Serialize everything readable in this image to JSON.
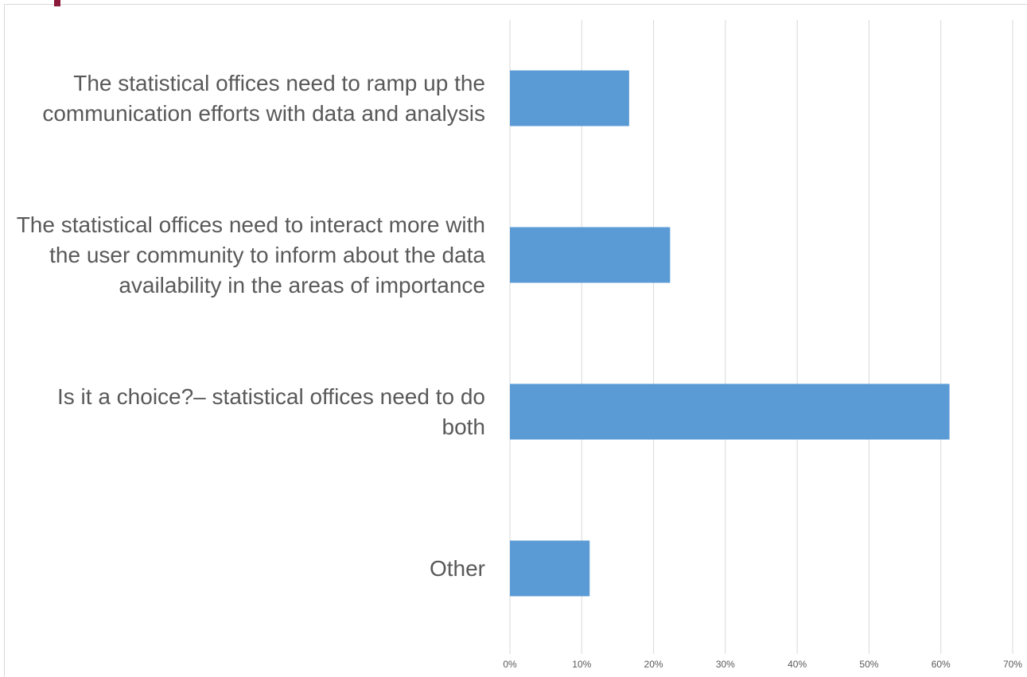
{
  "chart_data": {
    "type": "bar",
    "orientation": "horizontal",
    "categories": [
      "The statistical offices need to ramp up the communication efforts with data and analysis",
      "The statistical offices need to interact more with the user community to inform about the data availability in the areas of importance",
      "Is it a choice?– statistical offices need to do both",
      "Other"
    ],
    "values": [
      16.6,
      22.3,
      61.2,
      11.1
    ],
    "color": "#5b9bd5",
    "xlim": [
      0,
      70
    ],
    "xticks": [
      {
        "value": 0,
        "label": "0%"
      },
      {
        "value": 10,
        "label": "10%"
      },
      {
        "value": 20,
        "label": "20%"
      },
      {
        "value": 30,
        "label": "30%"
      },
      {
        "value": 40,
        "label": "40%"
      },
      {
        "value": 50,
        "label": "50%"
      },
      {
        "value": 60,
        "label": "60%"
      },
      {
        "value": 70,
        "label": "70%"
      }
    ],
    "grid": true
  }
}
